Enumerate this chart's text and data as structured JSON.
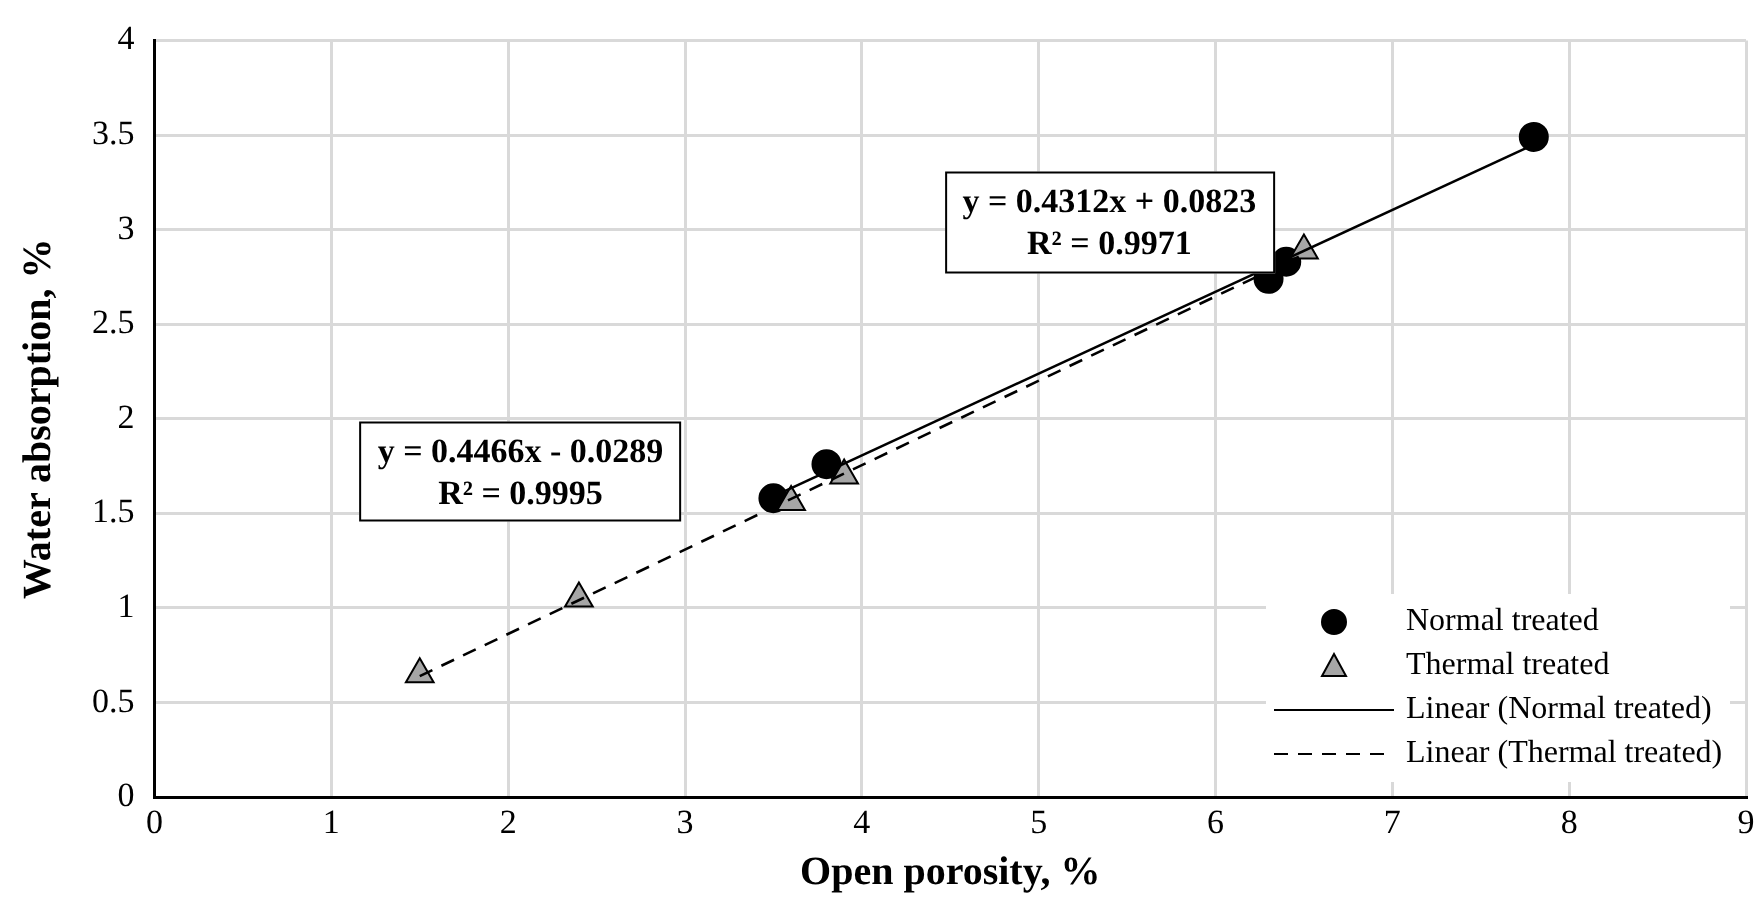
{
  "chart_data": {
    "type": "scatter",
    "xlabel": "Open porosity, %",
    "ylabel": "Water absorption, %",
    "xlim": [
      0,
      9
    ],
    "xticks": [
      0,
      1,
      2,
      3,
      4,
      5,
      6,
      7,
      8,
      9
    ],
    "ylim": [
      0,
      4
    ],
    "yticks": [
      0,
      0.5,
      1,
      1.5,
      2,
      2.5,
      3,
      3.5,
      4
    ],
    "grid": true,
    "legend": "bottom right",
    "series": [
      {
        "name": "Normal treated",
        "type": "scatter",
        "marker": "circle",
        "color": "#000000",
        "x": [
          3.5,
          3.8,
          6.3,
          6.4,
          7.8
        ],
        "values": [
          1.58,
          1.76,
          2.74,
          2.83,
          3.49
        ]
      },
      {
        "name": "Thermal treated",
        "type": "scatter",
        "marker": "triangle",
        "color": "#a6a6a6",
        "x": [
          1.5,
          2.4,
          3.6,
          3.9,
          6.5
        ],
        "values": [
          0.65,
          1.05,
          1.56,
          1.7,
          2.89
        ]
      },
      {
        "name": "Linear (Normal treated)",
        "type": "line",
        "line_style": "solid",
        "marker": "none",
        "color": "#000000",
        "x": [
          3.5,
          7.8
        ],
        "values": [
          1.59,
          3.45
        ]
      },
      {
        "name": "Linear (Thermal treated)",
        "type": "line",
        "line_style": "dashed",
        "marker": "none",
        "color": "#000000",
        "x": [
          1.5,
          6.5
        ],
        "values": [
          0.64,
          2.87
        ]
      }
    ],
    "annotations": [
      "y = 0.4312x + 0.0823\nR² = 0.9971",
      "y = 0.4466x - 0.0289\nR² = 0.9995"
    ]
  }
}
